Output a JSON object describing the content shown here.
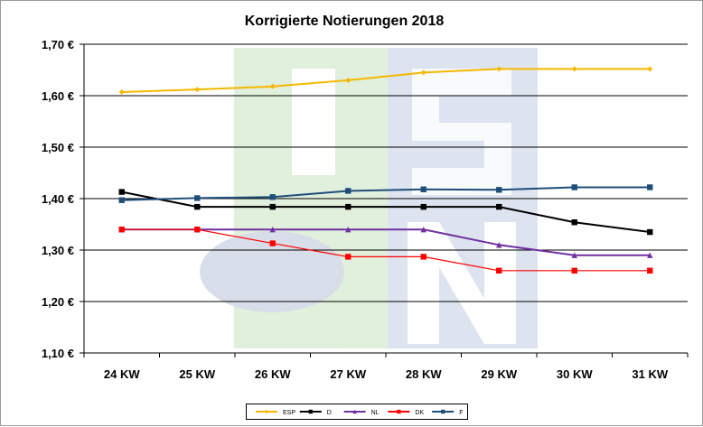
{
  "chart_data": {
    "type": "line",
    "title": "Korrigierte Notierungen 2018",
    "xlabel": "",
    "ylabel": "",
    "categories": [
      "24 KW",
      "25 KW",
      "26 KW",
      "27 KW",
      "28 KW",
      "29 KW",
      "30 KW",
      "31 KW"
    ],
    "ylim": [
      1.1,
      1.7
    ],
    "yticks": [
      1.1,
      1.2,
      1.3,
      1.4,
      1.5,
      1.6,
      1.7
    ],
    "ytick_labels": [
      "1,10 €",
      "1,20 €",
      "1,30 €",
      "1,40 €",
      "1,50 €",
      "1,60 €",
      "1,70 €"
    ],
    "grid": true,
    "legend_position": "bottom",
    "series": [
      {
        "name": "ESP",
        "color": "#f5b800",
        "marker": "diamond",
        "values": [
          1.607,
          1.612,
          1.618,
          1.63,
          1.645,
          1.652,
          1.652,
          1.652
        ]
      },
      {
        "name": "D",
        "color": "#000000",
        "marker": "square",
        "values": [
          1.413,
          1.384,
          1.384,
          1.384,
          1.384,
          1.384,
          1.354,
          1.335
        ]
      },
      {
        "name": "NL",
        "color": "#7030a0",
        "marker": "triangle",
        "values": [
          1.34,
          1.34,
          1.34,
          1.34,
          1.34,
          1.31,
          1.29,
          1.29
        ]
      },
      {
        "name": "DK",
        "color": "#ff0000",
        "marker": "square",
        "values": [
          1.34,
          1.34,
          1.313,
          1.287,
          1.287,
          1.26,
          1.26,
          1.26
        ]
      },
      {
        "name": "F",
        "color": "#1f4e79",
        "marker": "square",
        "values": [
          1.397,
          1.401,
          1.403,
          1.415,
          1.418,
          1.417,
          1.422,
          1.422
        ]
      }
    ]
  }
}
